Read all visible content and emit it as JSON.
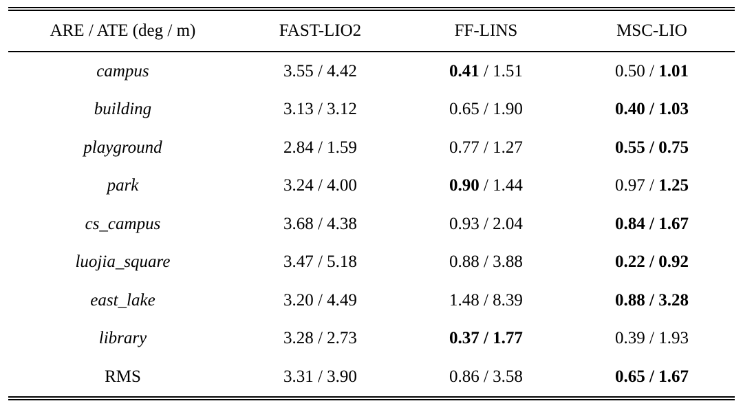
{
  "table": {
    "header": [
      "ARE / ATE (deg / m)",
      "FAST-LIO2",
      "FF-LINS",
      "MSC-LIO"
    ],
    "separator": " / ",
    "rows": [
      {
        "label": "campus",
        "italic": true,
        "cells": [
          {
            "are": "3.55",
            "ate": "4.42",
            "bold_are": false,
            "bold_ate": false
          },
          {
            "are": "0.41",
            "ate": "1.51",
            "bold_are": true,
            "bold_ate": false
          },
          {
            "are": "0.50",
            "ate": "1.01",
            "bold_are": false,
            "bold_ate": true
          }
        ]
      },
      {
        "label": "building",
        "italic": true,
        "cells": [
          {
            "are": "3.13",
            "ate": "3.12",
            "bold_are": false,
            "bold_ate": false
          },
          {
            "are": "0.65",
            "ate": "1.90",
            "bold_are": false,
            "bold_ate": false
          },
          {
            "are": "0.40",
            "ate": "1.03",
            "bold_are": true,
            "bold_ate": true
          }
        ]
      },
      {
        "label": "playground",
        "italic": true,
        "cells": [
          {
            "are": "2.84",
            "ate": "1.59",
            "bold_are": false,
            "bold_ate": false
          },
          {
            "are": "0.77",
            "ate": "1.27",
            "bold_are": false,
            "bold_ate": false
          },
          {
            "are": "0.55",
            "ate": "0.75",
            "bold_are": true,
            "bold_ate": true
          }
        ]
      },
      {
        "label": "park",
        "italic": true,
        "cells": [
          {
            "are": "3.24",
            "ate": "4.00",
            "bold_are": false,
            "bold_ate": false
          },
          {
            "are": "0.90",
            "ate": "1.44",
            "bold_are": true,
            "bold_ate": false
          },
          {
            "are": "0.97",
            "ate": "1.25",
            "bold_are": false,
            "bold_ate": true
          }
        ]
      },
      {
        "label": "cs_campus",
        "italic": true,
        "cells": [
          {
            "are": "3.68",
            "ate": "4.38",
            "bold_are": false,
            "bold_ate": false
          },
          {
            "are": "0.93",
            "ate": "2.04",
            "bold_are": false,
            "bold_ate": false
          },
          {
            "are": "0.84",
            "ate": "1.67",
            "bold_are": true,
            "bold_ate": true
          }
        ]
      },
      {
        "label": "luojia_square",
        "italic": true,
        "cells": [
          {
            "are": "3.47",
            "ate": "5.18",
            "bold_are": false,
            "bold_ate": false
          },
          {
            "are": "0.88",
            "ate": "3.88",
            "bold_are": false,
            "bold_ate": false
          },
          {
            "are": "0.22",
            "ate": "0.92",
            "bold_are": true,
            "bold_ate": true
          }
        ]
      },
      {
        "label": "east_lake",
        "italic": true,
        "cells": [
          {
            "are": "3.20",
            "ate": "4.49",
            "bold_are": false,
            "bold_ate": false
          },
          {
            "are": "1.48",
            "ate": "8.39",
            "bold_are": false,
            "bold_ate": false
          },
          {
            "are": "0.88",
            "ate": "3.28",
            "bold_are": true,
            "bold_ate": true
          }
        ]
      },
      {
        "label": "library",
        "italic": true,
        "cells": [
          {
            "are": "3.28",
            "ate": "2.73",
            "bold_are": false,
            "bold_ate": false
          },
          {
            "are": "0.37",
            "ate": "1.77",
            "bold_are": true,
            "bold_ate": true
          },
          {
            "are": "0.39",
            "ate": "1.93",
            "bold_are": false,
            "bold_ate": false
          }
        ]
      },
      {
        "label": "RMS",
        "italic": false,
        "cells": [
          {
            "are": "3.31",
            "ate": "3.90",
            "bold_are": false,
            "bold_ate": false
          },
          {
            "are": "0.86",
            "ate": "3.58",
            "bold_are": false,
            "bold_ate": false
          },
          {
            "are": "0.65",
            "ate": "1.67",
            "bold_are": true,
            "bold_ate": true
          }
        ]
      }
    ]
  }
}
